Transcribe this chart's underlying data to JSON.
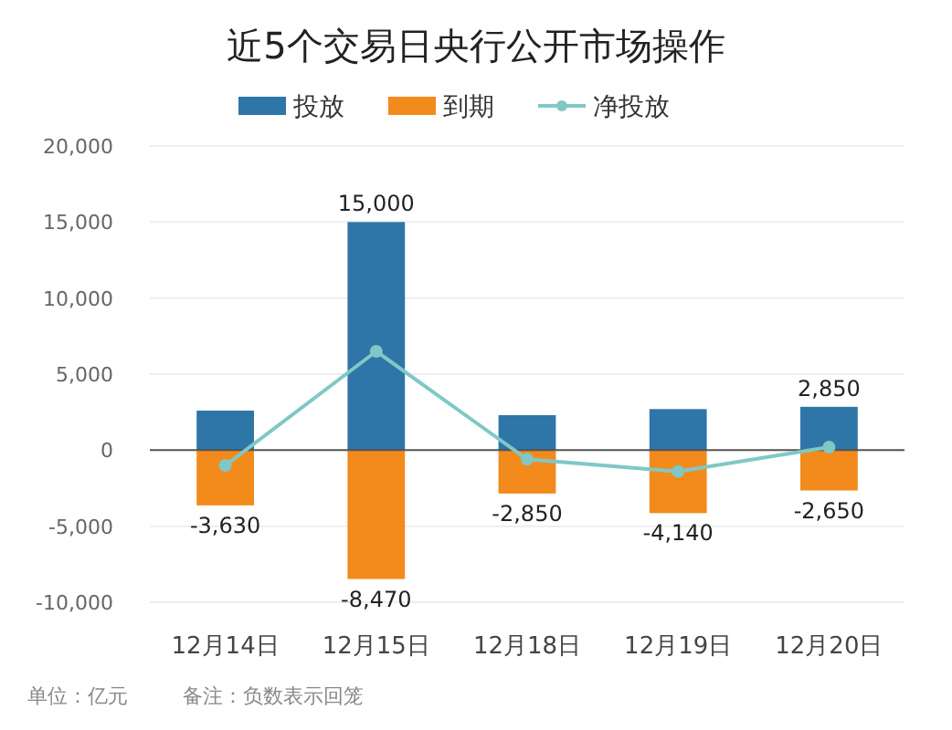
{
  "chart_data": {
    "type": "bar",
    "title": "近5个交易日央行公开市场操作",
    "categories": [
      "12月14日",
      "12月15日",
      "12月18日",
      "12月19日",
      "12月20日"
    ],
    "stacked": true,
    "series": [
      {
        "name": "投放",
        "color": "#2e75a8",
        "values": [
          2600,
          15000,
          2300,
          2700,
          2850
        ],
        "value_labels": [
          null,
          "15,000",
          null,
          null,
          "2,850"
        ]
      },
      {
        "name": "到期",
        "color": "#f28a1c",
        "values": [
          -3630,
          -8470,
          -2850,
          -4140,
          -2650
        ],
        "value_labels": [
          "-3,630",
          "-8,470",
          "-2,850",
          "-4,140",
          "-2,650"
        ]
      },
      {
        "name": "净投放",
        "type": "line",
        "color": "#7fc8c6",
        "marker": "circle",
        "values": [
          -1000,
          6500,
          -600,
          -1400,
          200
        ]
      }
    ],
    "ylim": [
      -10000,
      20000
    ],
    "yticks": [
      {
        "value": -10000,
        "label": "-10,000"
      },
      {
        "value": -5000,
        "label": "-5,000"
      },
      0,
      {
        "value": 5000,
        "label": "5,000"
      },
      {
        "value": 10000,
        "label": "10,000"
      },
      {
        "value": 15000,
        "label": "15,000"
      },
      {
        "value": 20000,
        "label": "20,000"
      }
    ],
    "grid": "y",
    "legend": "top",
    "annotations": [
      "单位：亿元",
      "备注：负数表示回笼"
    ]
  }
}
